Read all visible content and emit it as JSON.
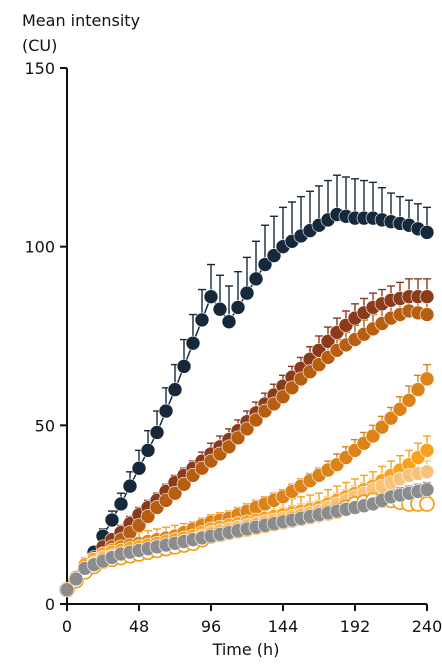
{
  "chart_data": {
    "type": "line",
    "title": "",
    "ylabel_line1": "Mean intensity",
    "ylabel_line2": "(CU)",
    "xlabel": "Time (h)",
    "xlim": [
      0,
      240
    ],
    "ylim": [
      0,
      150
    ],
    "xticks": [
      "0",
      "48",
      "96",
      "144",
      "192",
      "240"
    ],
    "yticks": [
      "0",
      "50",
      "100",
      "150"
    ],
    "grid": false,
    "legend": "none",
    "series": [
      {
        "color": "#15293b",
        "marker": "filled",
        "x": [
          0,
          12,
          24,
          36,
          48,
          60,
          72,
          84,
          96,
          108,
          120,
          132,
          144,
          156,
          168,
          180,
          192,
          204,
          216,
          228,
          240
        ],
        "y": [
          4,
          10,
          19,
          28,
          38,
          48,
          60,
          73,
          86,
          79,
          87,
          95,
          100,
          103,
          106,
          109,
          108,
          108,
          107,
          106,
          104
        ],
        "err": [
          0,
          1,
          2,
          3,
          5,
          6,
          7,
          8,
          9,
          10,
          10,
          11,
          11,
          11,
          11,
          11,
          11,
          10,
          8,
          7,
          7
        ]
      },
      {
        "color": "#8b3a1a",
        "marker": "filled",
        "x": [
          0,
          12,
          24,
          36,
          48,
          60,
          72,
          84,
          96,
          108,
          120,
          132,
          144,
          156,
          168,
          180,
          192,
          204,
          216,
          228,
          240
        ],
        "y": [
          4,
          10,
          16,
          20,
          25,
          29,
          34,
          38,
          42,
          46,
          51,
          56,
          61,
          66,
          71,
          76,
          80,
          83,
          85,
          86,
          86
        ],
        "err": [
          0,
          1,
          1,
          2,
          2,
          2,
          2,
          2,
          3,
          3,
          3,
          3,
          3,
          3,
          4,
          4,
          4,
          4,
          4,
          5,
          5
        ]
      },
      {
        "color": "#b85e10",
        "marker": "filled",
        "x": [
          0,
          12,
          24,
          36,
          48,
          60,
          72,
          84,
          96,
          108,
          120,
          132,
          144,
          156,
          168,
          180,
          192,
          204,
          216,
          228,
          240
        ],
        "y": [
          4,
          9,
          14,
          18,
          22,
          27,
          31,
          36,
          40,
          44,
          49,
          54,
          58,
          63,
          67,
          71,
          74,
          77,
          80,
          82,
          81
        ],
        "err": [
          0,
          1,
          1,
          1,
          2,
          2,
          2,
          2,
          2,
          2,
          3,
          3,
          3,
          3,
          3,
          3,
          4,
          4,
          4,
          4,
          4
        ]
      },
      {
        "color": "#db8318",
        "marker": "filled",
        "x": [
          0,
          12,
          24,
          36,
          48,
          60,
          72,
          84,
          96,
          108,
          120,
          132,
          144,
          156,
          168,
          180,
          192,
          204,
          216,
          228,
          240
        ],
        "y": [
          4,
          11,
          14,
          16,
          17,
          18,
          19,
          21,
          23,
          24,
          26,
          28,
          30,
          33,
          36,
          39,
          43,
          47,
          52,
          57,
          63
        ],
        "err": [
          0,
          1,
          1,
          1,
          1,
          1,
          1,
          1,
          2,
          2,
          2,
          2,
          2,
          2,
          2,
          3,
          3,
          3,
          3,
          4,
          4
        ]
      },
      {
        "color": "#f7a11c",
        "marker": "filled",
        "x": [
          0,
          12,
          24,
          36,
          48,
          60,
          72,
          84,
          96,
          108,
          120,
          132,
          144,
          156,
          168,
          180,
          192,
          204,
          216,
          228,
          240
        ],
        "y": [
          4,
          11,
          14,
          15,
          16,
          17,
          18,
          19,
          21,
          22,
          23,
          24,
          25,
          26,
          27,
          29,
          31,
          33,
          36,
          39,
          43
        ],
        "err": [
          0,
          2,
          3,
          3,
          4,
          4,
          4,
          4,
          4,
          4,
          4,
          4,
          4,
          4,
          4,
          4,
          4,
          4,
          4,
          4,
          4
        ]
      },
      {
        "color": "#f7c27a",
        "marker": "filled",
        "x": [
          0,
          12,
          24,
          36,
          48,
          60,
          72,
          84,
          96,
          108,
          120,
          132,
          144,
          156,
          168,
          180,
          192,
          204,
          216,
          228,
          240
        ],
        "y": [
          4,
          10,
          13,
          14,
          15,
          16,
          17,
          18,
          20,
          21,
          22,
          23,
          24,
          25,
          26,
          28,
          30,
          32,
          34,
          36,
          37
        ],
        "err": [
          0,
          1,
          2,
          2,
          3,
          3,
          3,
          3,
          3,
          3,
          3,
          3,
          3,
          3,
          3,
          3,
          3,
          3,
          3,
          3,
          3
        ]
      },
      {
        "color": "#f29a0e",
        "marker": "open",
        "x": [
          0,
          12,
          24,
          36,
          48,
          60,
          72,
          84,
          96,
          108,
          120,
          132,
          144,
          156,
          168,
          180,
          192,
          204,
          216,
          228,
          240
        ],
        "y": [
          4,
          9,
          12,
          13,
          14,
          15,
          16,
          17,
          19,
          20,
          21,
          22,
          23,
          24,
          25,
          26,
          28,
          29,
          29,
          28,
          28
        ],
        "err": [
          0,
          1,
          1,
          1,
          1,
          1,
          1,
          1,
          1,
          1,
          1,
          1,
          1,
          1,
          1,
          1,
          2,
          2,
          2,
          2,
          2
        ]
      },
      {
        "color": "#8c8c8c",
        "marker": "filled",
        "x": [
          0,
          12,
          24,
          36,
          48,
          60,
          72,
          84,
          96,
          108,
          120,
          132,
          144,
          156,
          168,
          180,
          192,
          204,
          216,
          228,
          240
        ],
        "y": [
          4,
          10,
          12,
          14,
          15,
          16,
          17,
          18,
          19,
          20,
          21,
          22,
          23,
          24,
          25,
          26,
          27,
          28,
          30,
          31,
          32
        ],
        "err": [
          0,
          1,
          1,
          1,
          1,
          1,
          1,
          1,
          1,
          1,
          1,
          1,
          1,
          1,
          1,
          1,
          1,
          2,
          2,
          2,
          2
        ]
      }
    ]
  }
}
